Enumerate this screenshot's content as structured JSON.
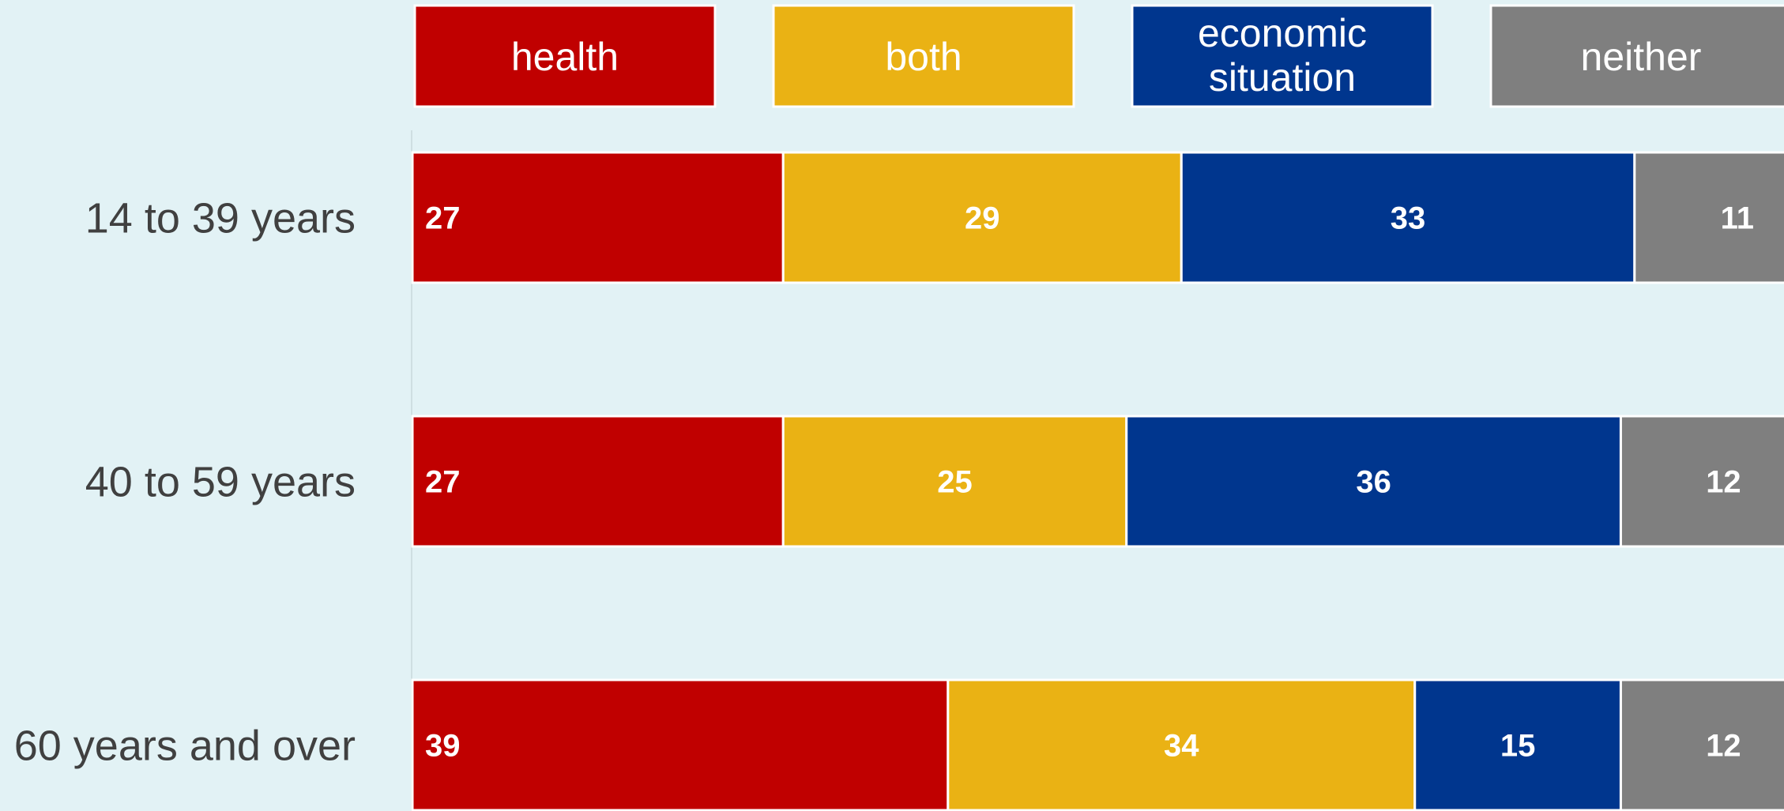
{
  "chart_data": {
    "type": "bar",
    "orientation": "horizontal",
    "stacked": true,
    "title": "",
    "xlabel": "",
    "ylabel": "",
    "xlim": [
      0,
      100
    ],
    "grid": false,
    "legend_position": "top",
    "categories": [
      "14 to 39 years",
      "40 to 59 years",
      "60 years and over"
    ],
    "series": [
      {
        "name": "health",
        "color": "#c00000",
        "values": [
          27,
          27,
          39
        ]
      },
      {
        "name": "both",
        "color": "#eab214",
        "values": [
          29,
          25,
          34
        ]
      },
      {
        "name": "economic situation",
        "color": "#00368e",
        "values": [
          33,
          36,
          15
        ]
      },
      {
        "name": "neither",
        "color": "#7f7f7f",
        "values": [
          11,
          12,
          12
        ]
      }
    ]
  }
}
